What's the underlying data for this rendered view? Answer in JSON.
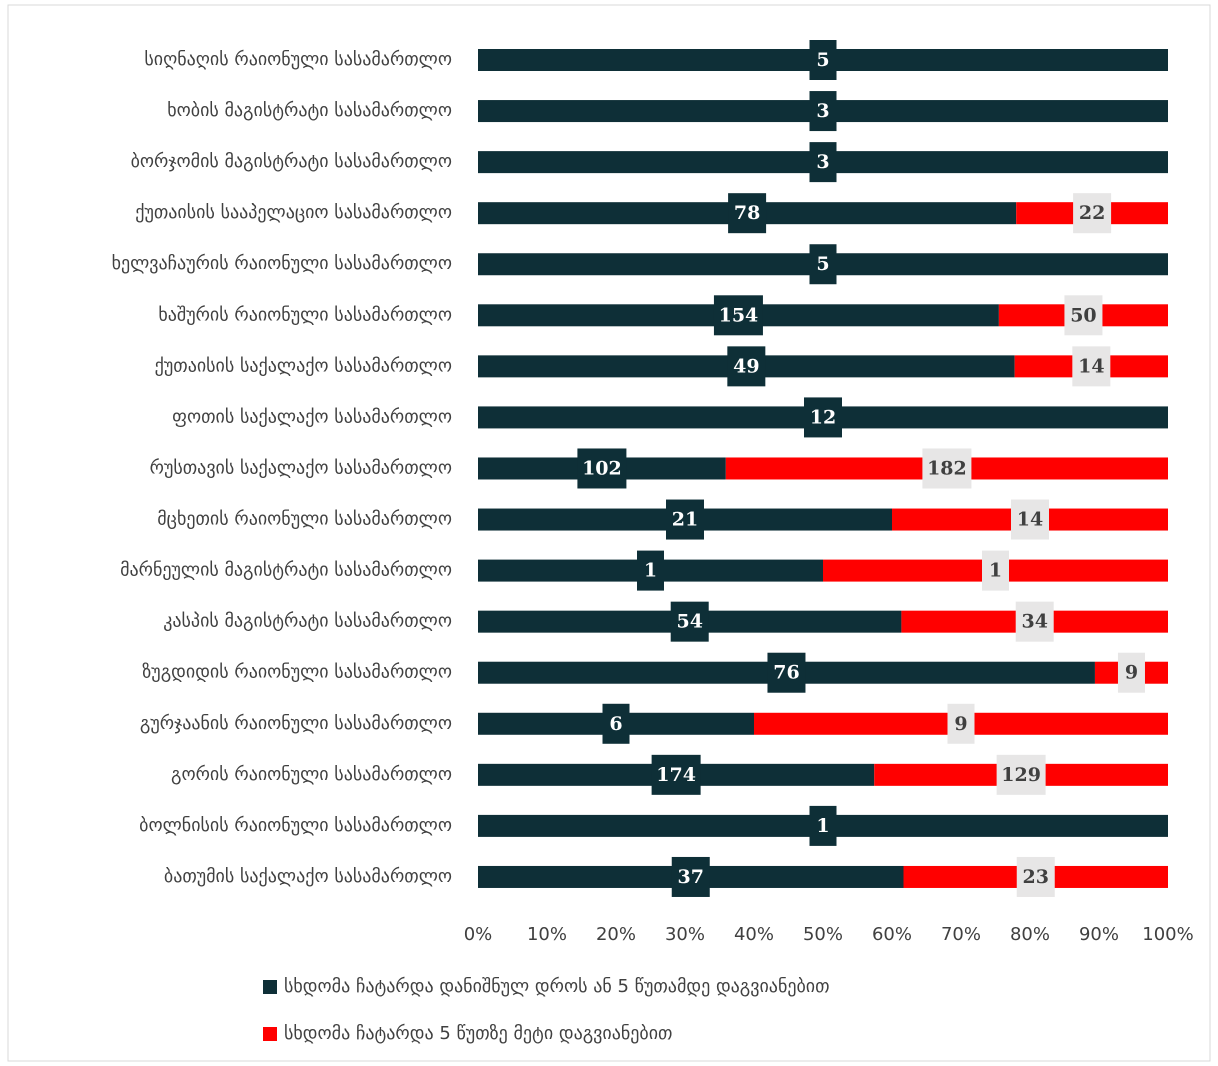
{
  "chart_data": {
    "type": "bar",
    "orientation": "horizontal",
    "stacking": "percent",
    "categories": [
      "სიღნაღის რაიონული სასამართლო",
      "ხობის მაგისტრატი სასამართლო",
      "ბორჯომის მაგისტრატი სასამართლო",
      "ქუთაისის სააპელაციო სასამართლო",
      "ხელვაჩაურის რაიონული სასამართლო",
      "ხაშურის რაიონული სასამართლო",
      "ქუთაისის საქალაქო სასამართლო",
      "ფოთის საქალაქო სასამართლო",
      "რუსთავის საქალაქო სასამართლო",
      "მცხეთის რაიონული სასამართლო",
      "მარნეულის მაგისტრატი სასამართლო",
      "კასპის მაგისტრატი სასამართლო",
      "ზუგდიდის რაიონული სასამართლო",
      "გურჯაანის რაიონული სასამართლო",
      "გორის რაიონული სასამართლო",
      "ბოლნისის რაიონული სასამართლო",
      "ბათუმის საქალაქო სასამართლო"
    ],
    "series": [
      {
        "name": "სხდომა ჩატარდა დანიშნულ დროს ან 5 წუთამდე დაგვიანებით",
        "color": "#0e2f37",
        "values": [
          5,
          3,
          3,
          78,
          5,
          154,
          49,
          12,
          102,
          21,
          1,
          54,
          76,
          6,
          174,
          1,
          37
        ]
      },
      {
        "name": "სხდომა ჩატარდა 5 წუთზე მეტი დაგვიანებით",
        "color": "#ff0000",
        "values": [
          null,
          null,
          null,
          22,
          null,
          50,
          14,
          null,
          182,
          14,
          1,
          34,
          9,
          9,
          129,
          null,
          23
        ]
      }
    ],
    "xlim": [
      0,
      100
    ],
    "xticks": [
      {
        "value": 0,
        "label": "0%"
      },
      {
        "value": 10,
        "label": "10%"
      },
      {
        "value": 20,
        "label": "20%"
      },
      {
        "value": 30,
        "label": "30%"
      },
      {
        "value": 40,
        "label": "40%"
      },
      {
        "value": 50,
        "label": "50%"
      },
      {
        "value": 60,
        "label": "60%"
      },
      {
        "value": 70,
        "label": "70%"
      },
      {
        "value": 80,
        "label": "80%"
      },
      {
        "value": 90,
        "label": "90%"
      },
      {
        "value": 100,
        "label": "100%"
      }
    ],
    "legend": "bottom"
  }
}
